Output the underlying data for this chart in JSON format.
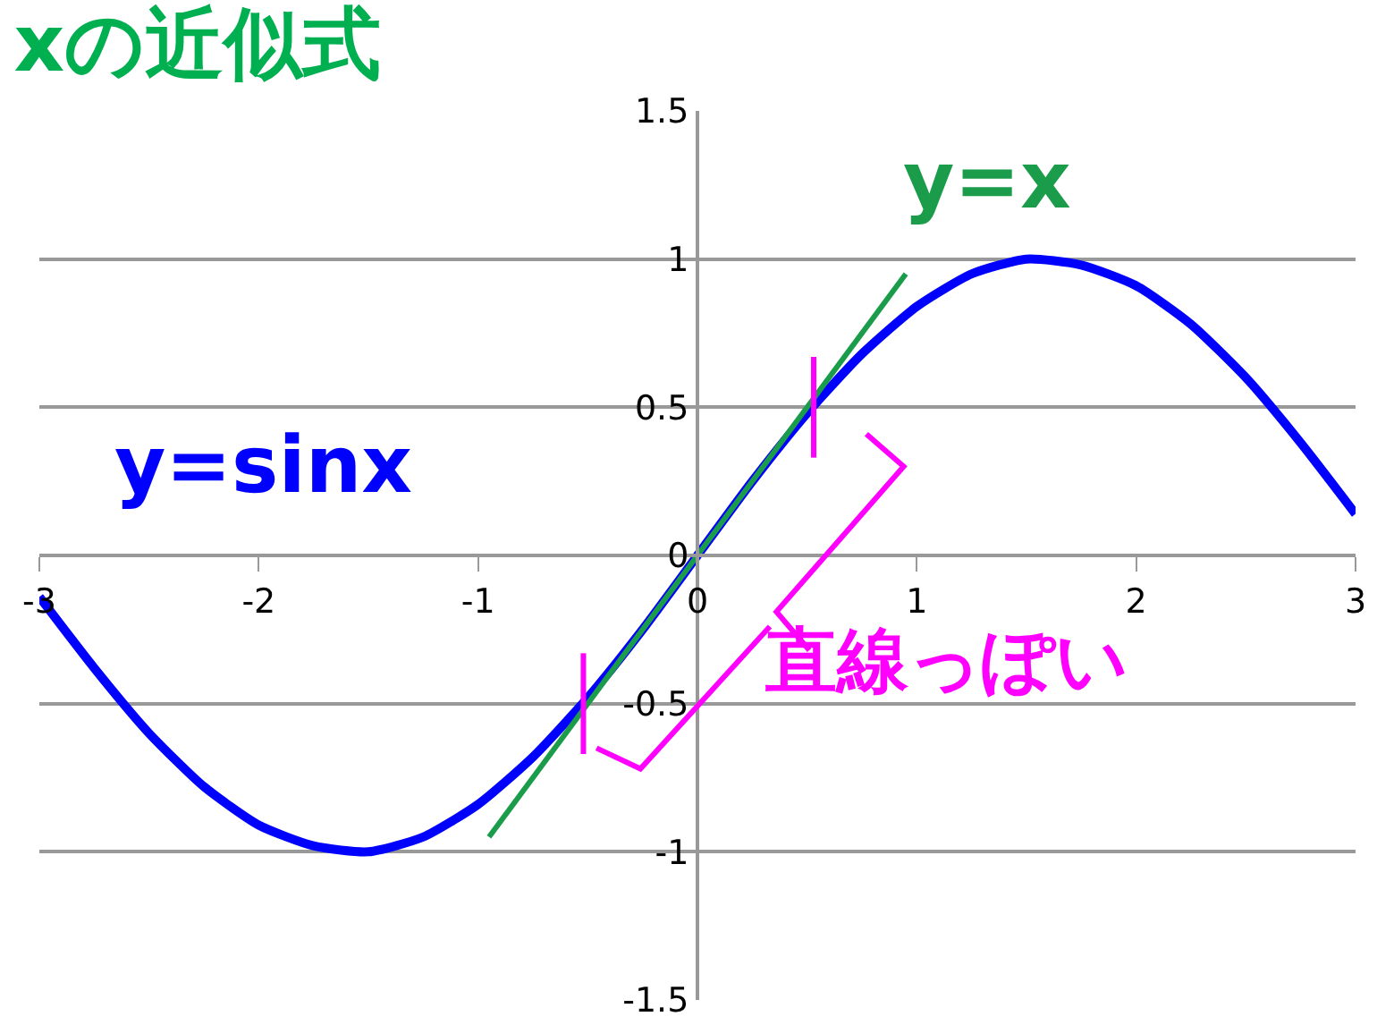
{
  "chart_data": {
    "type": "line",
    "title": "xの近似式",
    "series": [
      {
        "name": "y=sinx",
        "color": "#0000ff",
        "x": [
          -3,
          -2.75,
          -2.5,
          -2.25,
          -2,
          -1.75,
          -1.5,
          -1.25,
          -1,
          -0.75,
          -0.5,
          -0.25,
          0,
          0.25,
          0.5,
          0.75,
          1,
          1.25,
          1.5,
          1.75,
          2,
          2.25,
          2.5,
          2.75,
          3
        ],
        "values": [
          -0.14,
          -0.38,
          -0.6,
          -0.78,
          -0.91,
          -0.98,
          -1.0,
          -0.95,
          -0.84,
          -0.68,
          -0.48,
          -0.25,
          0,
          0.25,
          0.48,
          0.68,
          0.84,
          0.95,
          1.0,
          0.98,
          0.91,
          0.78,
          0.6,
          0.38,
          0.14
        ]
      },
      {
        "name": "y=x",
        "color": "#1a9c4a",
        "x": [
          -0.95,
          0.95
        ],
        "values": [
          -0.95,
          0.95
        ]
      }
    ],
    "annotations": [
      "直線っぽい"
    ],
    "xlim": [
      -3,
      3
    ],
    "xticks": [
      -3,
      -2,
      -1,
      0,
      1,
      2,
      3
    ],
    "ylim": [
      -1.5,
      1.5
    ],
    "yticks": [
      -1.5,
      -1,
      -0.5,
      0,
      0.5,
      1,
      1.5
    ],
    "grid": "y",
    "legend": false,
    "marker": "none",
    "line_style": "solid"
  }
}
